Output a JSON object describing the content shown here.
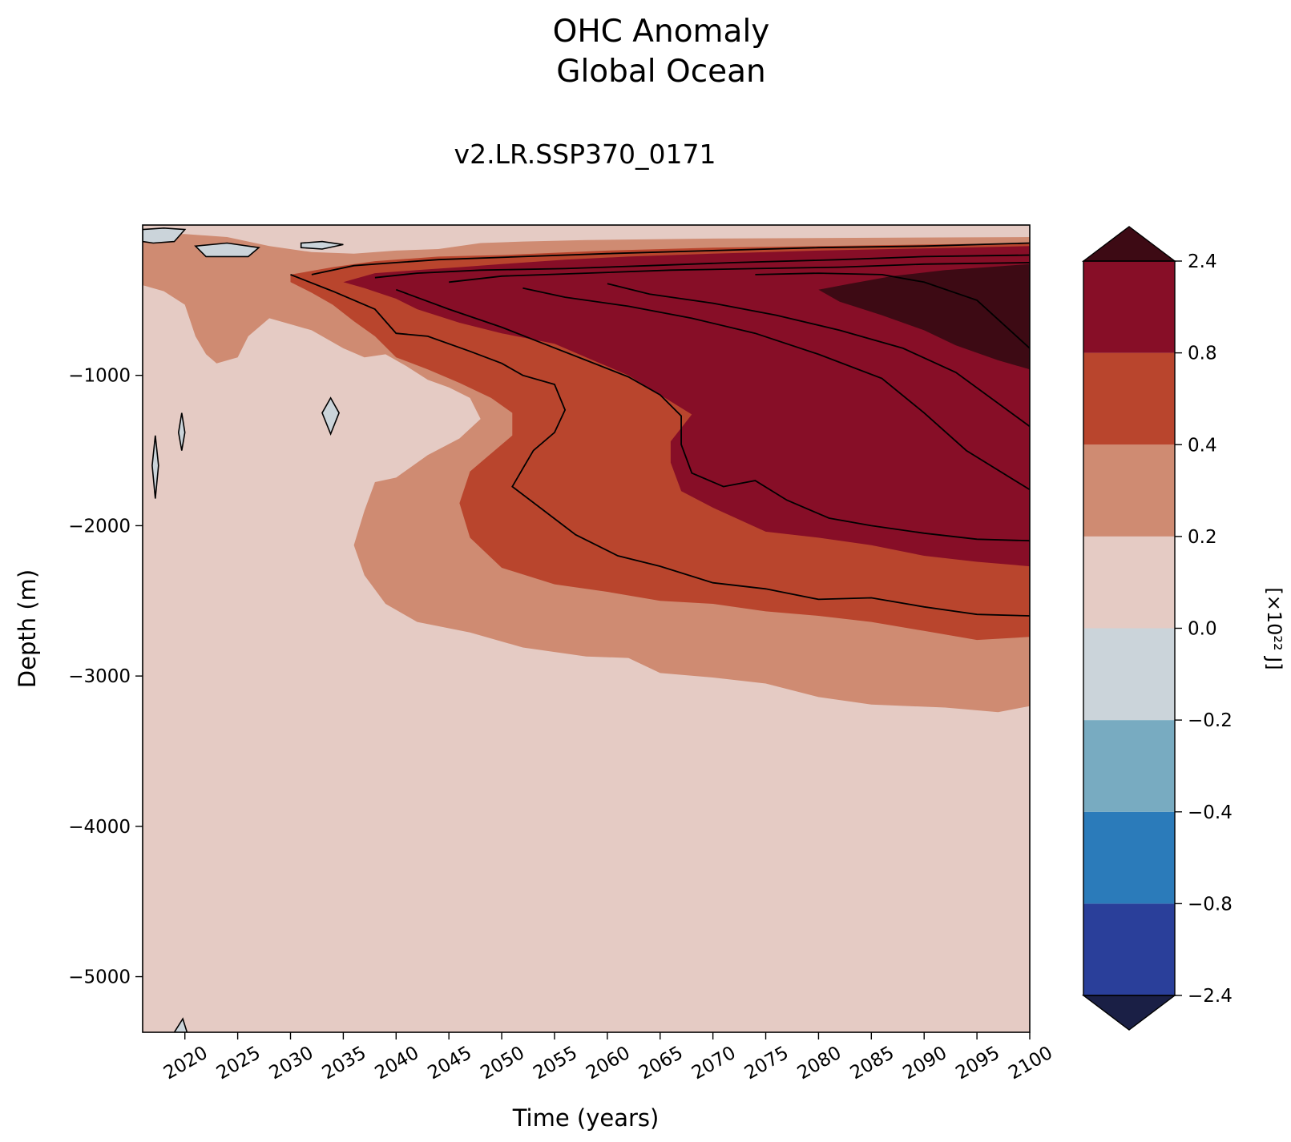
{
  "figure": {
    "title_line1": "OHC Anomaly",
    "title_line2": "Global Ocean",
    "subtitle": "v2.LR.SSP370_0171"
  },
  "chart_data": {
    "type": "contourf",
    "xlabel": "Time (years)",
    "ylabel": "Depth (m)",
    "xlim": [
      2016,
      2100
    ],
    "ylim": [
      -5370,
      0
    ],
    "x_ticks": [
      "2020",
      "2025",
      "2030",
      "2035",
      "2040",
      "2045",
      "2050",
      "2055",
      "2060",
      "2065",
      "2070",
      "2075",
      "2080",
      "2085",
      "2090",
      "2095",
      "2100"
    ],
    "y_ticks": [
      {
        "value": -1000,
        "label": "−1000"
      },
      {
        "value": -2000,
        "label": "−2000"
      },
      {
        "value": -3000,
        "label": "−3000"
      },
      {
        "value": -4000,
        "label": "−4000"
      },
      {
        "value": -5000,
        "label": "−5000"
      }
    ],
    "colorbar": {
      "label": "[×10²² J]",
      "tick_labels": [
        "2.4",
        "0.8",
        "0.4",
        "0.2",
        "0.0",
        "−0.2",
        "−0.4",
        "−0.8",
        "−2.4"
      ],
      "levels": [
        -2.4,
        -0.8,
        -0.4,
        -0.2,
        0.0,
        0.2,
        0.4,
        0.8,
        2.4
      ],
      "colors": [
        "#2a3f9a",
        "#2b7bba",
        "#78abc1",
        "#cbd4da",
        "#e5cbc4",
        "#cf8b72",
        "#b9452d",
        "#870e27"
      ],
      "under_color": "#1a1f45",
      "over_color": "#3d0a14"
    },
    "regions": [
      {
        "level": "0.2 to 0.4",
        "color": "#cf8b72",
        "boundary": [
          [
            2016,
            -60
          ],
          [
            2020,
            -60
          ],
          [
            2024,
            -80
          ],
          [
            2028,
            -140
          ],
          [
            2032,
            -180
          ],
          [
            2036,
            -190
          ],
          [
            2040,
            -170
          ],
          [
            2044,
            -160
          ],
          [
            2048,
            -120
          ],
          [
            2052,
            -110
          ],
          [
            2058,
            -100
          ],
          [
            2070,
            -90
          ],
          [
            2100,
            -80
          ],
          [
            2100,
            -3200
          ],
          [
            2097,
            -3240
          ],
          [
            2092,
            -3210
          ],
          [
            2085,
            -3190
          ],
          [
            2080,
            -3140
          ],
          [
            2075,
            -3050
          ],
          [
            2070,
            -3010
          ],
          [
            2065,
            -2980
          ],
          [
            2062,
            -2880
          ],
          [
            2058,
            -2870
          ],
          [
            2052,
            -2810
          ],
          [
            2047,
            -2710
          ],
          [
            2042,
            -2640
          ],
          [
            2039,
            -2520
          ],
          [
            2037,
            -2330
          ],
          [
            2036,
            -2130
          ],
          [
            2037,
            -1900
          ],
          [
            2038,
            -1710
          ],
          [
            2040,
            -1680
          ],
          [
            2043,
            -1530
          ],
          [
            2046,
            -1420
          ],
          [
            2048,
            -1290
          ],
          [
            2047,
            -1150
          ],
          [
            2045,
            -1080
          ],
          [
            2043,
            -1030
          ],
          [
            2041,
            -940
          ],
          [
            2039,
            -860
          ],
          [
            2037,
            -880
          ],
          [
            2035,
            -820
          ],
          [
            2032,
            -700
          ],
          [
            2030,
            -660
          ],
          [
            2028,
            -620
          ],
          [
            2026,
            -740
          ],
          [
            2025,
            -880
          ],
          [
            2023,
            -920
          ],
          [
            2022,
            -860
          ],
          [
            2021,
            -740
          ],
          [
            2020,
            -530
          ],
          [
            2018,
            -440
          ],
          [
            2016,
            -400
          ]
        ]
      },
      {
        "level": "0.4 to 0.8",
        "color": "#b9452d",
        "boundary": [
          [
            2030,
            -330
          ],
          [
            2034,
            -280
          ],
          [
            2038,
            -240
          ],
          [
            2044,
            -210
          ],
          [
            2050,
            -200
          ],
          [
            2060,
            -170
          ],
          [
            2070,
            -150
          ],
          [
            2100,
            -120
          ],
          [
            2100,
            -2740
          ],
          [
            2095,
            -2760
          ],
          [
            2090,
            -2700
          ],
          [
            2085,
            -2640
          ],
          [
            2080,
            -2600
          ],
          [
            2075,
            -2570
          ],
          [
            2070,
            -2520
          ],
          [
            2065,
            -2500
          ],
          [
            2060,
            -2440
          ],
          [
            2055,
            -2390
          ],
          [
            2050,
            -2280
          ],
          [
            2047,
            -2080
          ],
          [
            2046,
            -1850
          ],
          [
            2047,
            -1640
          ],
          [
            2049,
            -1520
          ],
          [
            2051,
            -1400
          ],
          [
            2051,
            -1250
          ],
          [
            2049,
            -1150
          ],
          [
            2046,
            -1050
          ],
          [
            2043,
            -960
          ],
          [
            2040,
            -880
          ],
          [
            2038,
            -740
          ],
          [
            2036,
            -640
          ],
          [
            2034,
            -530
          ],
          [
            2032,
            -450
          ],
          [
            2030,
            -380
          ]
        ]
      },
      {
        "level": "0.8 to 2.4",
        "color": "#870e27",
        "boundary": [
          [
            2035,
            -380
          ],
          [
            2038,
            -320
          ],
          [
            2042,
            -300
          ],
          [
            2046,
            -280
          ],
          [
            2050,
            -260
          ],
          [
            2056,
            -230
          ],
          [
            2062,
            -210
          ],
          [
            2070,
            -190
          ],
          [
            2080,
            -170
          ],
          [
            2100,
            -140
          ],
          [
            2100,
            -2270
          ],
          [
            2095,
            -2240
          ],
          [
            2090,
            -2200
          ],
          [
            2085,
            -2130
          ],
          [
            2080,
            -2080
          ],
          [
            2075,
            -2040
          ],
          [
            2070,
            -1880
          ],
          [
            2067,
            -1770
          ],
          [
            2066,
            -1580
          ],
          [
            2066,
            -1440
          ],
          [
            2068,
            -1260
          ],
          [
            2065,
            -1130
          ],
          [
            2062,
            -1000
          ],
          [
            2058,
            -880
          ],
          [
            2055,
            -790
          ],
          [
            2050,
            -720
          ],
          [
            2046,
            -650
          ],
          [
            2042,
            -560
          ],
          [
            2040,
            -490
          ],
          [
            2037,
            -420
          ]
        ]
      },
      {
        "level": "> 2.4",
        "color": "#3d0a14",
        "boundary": [
          [
            2080,
            -430
          ],
          [
            2083,
            -390
          ],
          [
            2087,
            -340
          ],
          [
            2092,
            -300
          ],
          [
            2096,
            -280
          ],
          [
            2100,
            -260
          ],
          [
            2100,
            -960
          ],
          [
            2097,
            -900
          ],
          [
            2093,
            -800
          ],
          [
            2090,
            -700
          ],
          [
            2086,
            -600
          ],
          [
            2082,
            -510
          ]
        ]
      },
      {
        "level": "0.0 to -0.2",
        "color": "#cbd4da",
        "boundary": [
          [
            2016,
            -30
          ],
          [
            2018,
            -20
          ],
          [
            2020,
            -30
          ],
          [
            2019,
            -110
          ],
          [
            2017,
            -120
          ],
          [
            2016,
            -110
          ]
        ]
      },
      {
        "level": "0.0 to -0.2",
        "color": "#cbd4da",
        "boundary": [
          [
            2021,
            -140
          ],
          [
            2024,
            -120
          ],
          [
            2027,
            -150
          ],
          [
            2026,
            -210
          ],
          [
            2022,
            -210
          ]
        ]
      },
      {
        "level": "0.0 to -0.2",
        "color": "#cbd4da",
        "boundary": [
          [
            2031,
            -120
          ],
          [
            2033,
            -110
          ],
          [
            2035,
            -130
          ],
          [
            2033,
            -160
          ],
          [
            2031,
            -150
          ]
        ]
      },
      {
        "level": "0.0 to -0.2",
        "color": "#cbd4da",
        "boundary": [
          [
            2033.8,
            -1150
          ],
          [
            2034.6,
            -1250
          ],
          [
            2033.8,
            -1390
          ],
          [
            2033,
            -1250
          ]
        ]
      },
      {
        "level": "0.0 to -0.2",
        "color": "#cbd4da",
        "boundary": [
          [
            2019.7,
            -1250
          ],
          [
            2020,
            -1380
          ],
          [
            2019.7,
            -1500
          ],
          [
            2019.4,
            -1380
          ]
        ]
      },
      {
        "level": "0.0 to -0.2",
        "color": "#cbd4da",
        "boundary": [
          [
            2017.2,
            -1400
          ],
          [
            2017.5,
            -1600
          ],
          [
            2017.2,
            -1820
          ],
          [
            2016.9,
            -1600
          ]
        ]
      },
      {
        "level": "0.0 to -0.2",
        "color": "#cbd4da",
        "boundary": [
          [
            2019,
            -5370
          ],
          [
            2019.8,
            -5280
          ],
          [
            2020.2,
            -5370
          ]
        ]
      }
    ],
    "contour_lines": [
      [
        [
          2032,
          -330
        ],
        [
          2036,
          -270
        ],
        [
          2040,
          -250
        ],
        [
          2044,
          -230
        ],
        [
          2052,
          -210
        ],
        [
          2060,
          -190
        ],
        [
          2070,
          -170
        ],
        [
          2080,
          -150
        ],
        [
          2090,
          -140
        ],
        [
          2100,
          -120
        ]
      ],
      [
        [
          2038,
          -350
        ],
        [
          2042,
          -320
        ],
        [
          2048,
          -300
        ],
        [
          2056,
          -290
        ],
        [
          2064,
          -270
        ],
        [
          2072,
          -250
        ],
        [
          2082,
          -230
        ],
        [
          2090,
          -210
        ],
        [
          2100,
          -200
        ]
      ],
      [
        [
          2045,
          -380
        ],
        [
          2050,
          -340
        ],
        [
          2058,
          -320
        ],
        [
          2066,
          -300
        ],
        [
          2074,
          -290
        ],
        [
          2082,
          -280
        ],
        [
          2090,
          -260
        ],
        [
          2100,
          -250
        ]
      ],
      [
        [
          2030,
          -330
        ],
        [
          2034,
          -440
        ],
        [
          2038,
          -560
        ],
        [
          2040,
          -720
        ],
        [
          2043,
          -740
        ],
        [
          2047,
          -840
        ],
        [
          2050,
          -920
        ],
        [
          2052,
          -1000
        ],
        [
          2055,
          -1060
        ],
        [
          2056,
          -1230
        ],
        [
          2055,
          -1380
        ],
        [
          2053,
          -1500
        ],
        [
          2052,
          -1620
        ],
        [
          2051,
          -1740
        ],
        [
          2054,
          -1900
        ],
        [
          2057,
          -2060
        ],
        [
          2061,
          -2200
        ],
        [
          2065,
          -2270
        ],
        [
          2070,
          -2380
        ],
        [
          2075,
          -2420
        ],
        [
          2080,
          -2490
        ],
        [
          2085,
          -2480
        ],
        [
          2090,
          -2540
        ],
        [
          2095,
          -2590
        ],
        [
          2100,
          -2600
        ]
      ],
      [
        [
          2040,
          -430
        ],
        [
          2045,
          -560
        ],
        [
          2050,
          -680
        ],
        [
          2054,
          -790
        ],
        [
          2058,
          -900
        ],
        [
          2062,
          -1010
        ],
        [
          2065,
          -1130
        ],
        [
          2067,
          -1270
        ],
        [
          2067,
          -1460
        ],
        [
          2068,
          -1650
        ],
        [
          2071,
          -1740
        ],
        [
          2074,
          -1700
        ],
        [
          2077,
          -1830
        ],
        [
          2081,
          -1950
        ],
        [
          2085,
          -2000
        ],
        [
          2090,
          -2050
        ],
        [
          2095,
          -2090
        ],
        [
          2100,
          -2100
        ]
      ],
      [
        [
          2052,
          -420
        ],
        [
          2056,
          -480
        ],
        [
          2062,
          -540
        ],
        [
          2068,
          -620
        ],
        [
          2074,
          -720
        ],
        [
          2080,
          -860
        ],
        [
          2086,
          -1020
        ],
        [
          2090,
          -1250
        ],
        [
          2094,
          -1500
        ],
        [
          2100,
          -1760
        ]
      ],
      [
        [
          2060,
          -390
        ],
        [
          2064,
          -460
        ],
        [
          2070,
          -520
        ],
        [
          2076,
          -600
        ],
        [
          2082,
          -700
        ],
        [
          2088,
          -820
        ],
        [
          2093,
          -980
        ],
        [
          2100,
          -1340
        ]
      ],
      [
        [
          2074,
          -330
        ],
        [
          2080,
          -320
        ],
        [
          2086,
          -330
        ],
        [
          2090,
          -380
        ],
        [
          2095,
          -500
        ],
        [
          2100,
          -820
        ]
      ]
    ]
  }
}
